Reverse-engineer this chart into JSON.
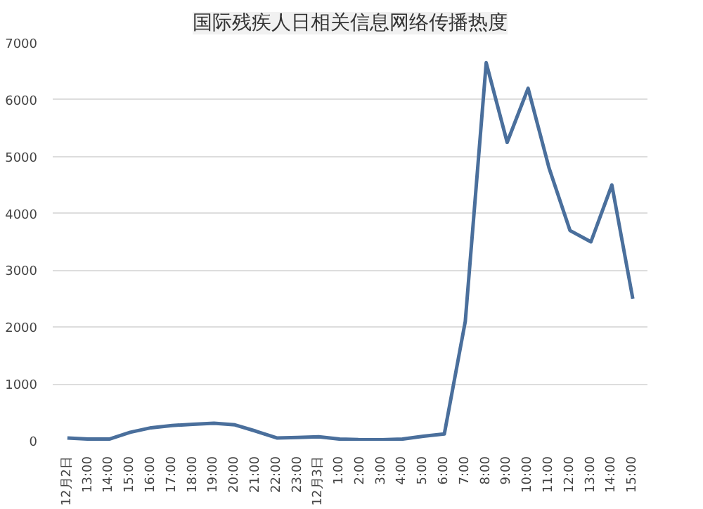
{
  "chart_data": {
    "type": "line",
    "title": "国际残疾人日相关信息网络传播热度",
    "categories": [
      "12月2日",
      "13:00",
      "14:00",
      "15:00",
      "16:00",
      "17:00",
      "18:00",
      "19:00",
      "20:00",
      "21:00",
      "22:00",
      "23:00",
      "12月3日",
      "1:00",
      "2:00",
      "3:00",
      "4:00",
      "5:00",
      "6:00",
      "7:00",
      "8:00",
      "9:00",
      "10:00",
      "11:00",
      "12:00",
      "13:00",
      "14:00",
      "15:00"
    ],
    "series": [
      {
        "color": "#4a6f9c",
        "values": [
          50,
          30,
          30,
          150,
          230,
          270,
          290,
          310,
          280,
          170,
          50,
          60,
          70,
          30,
          20,
          20,
          30,
          80,
          120,
          2100,
          6650,
          5250,
          6200,
          4800,
          3700,
          3500,
          4500,
          2500
        ]
      }
    ],
    "ylim": [
      0,
      7000
    ],
    "yticks": [
      0,
      1000,
      2000,
      3000,
      4000,
      5000,
      6000,
      7000
    ],
    "grid": "y",
    "marker": "none",
    "line_style": "solid"
  }
}
